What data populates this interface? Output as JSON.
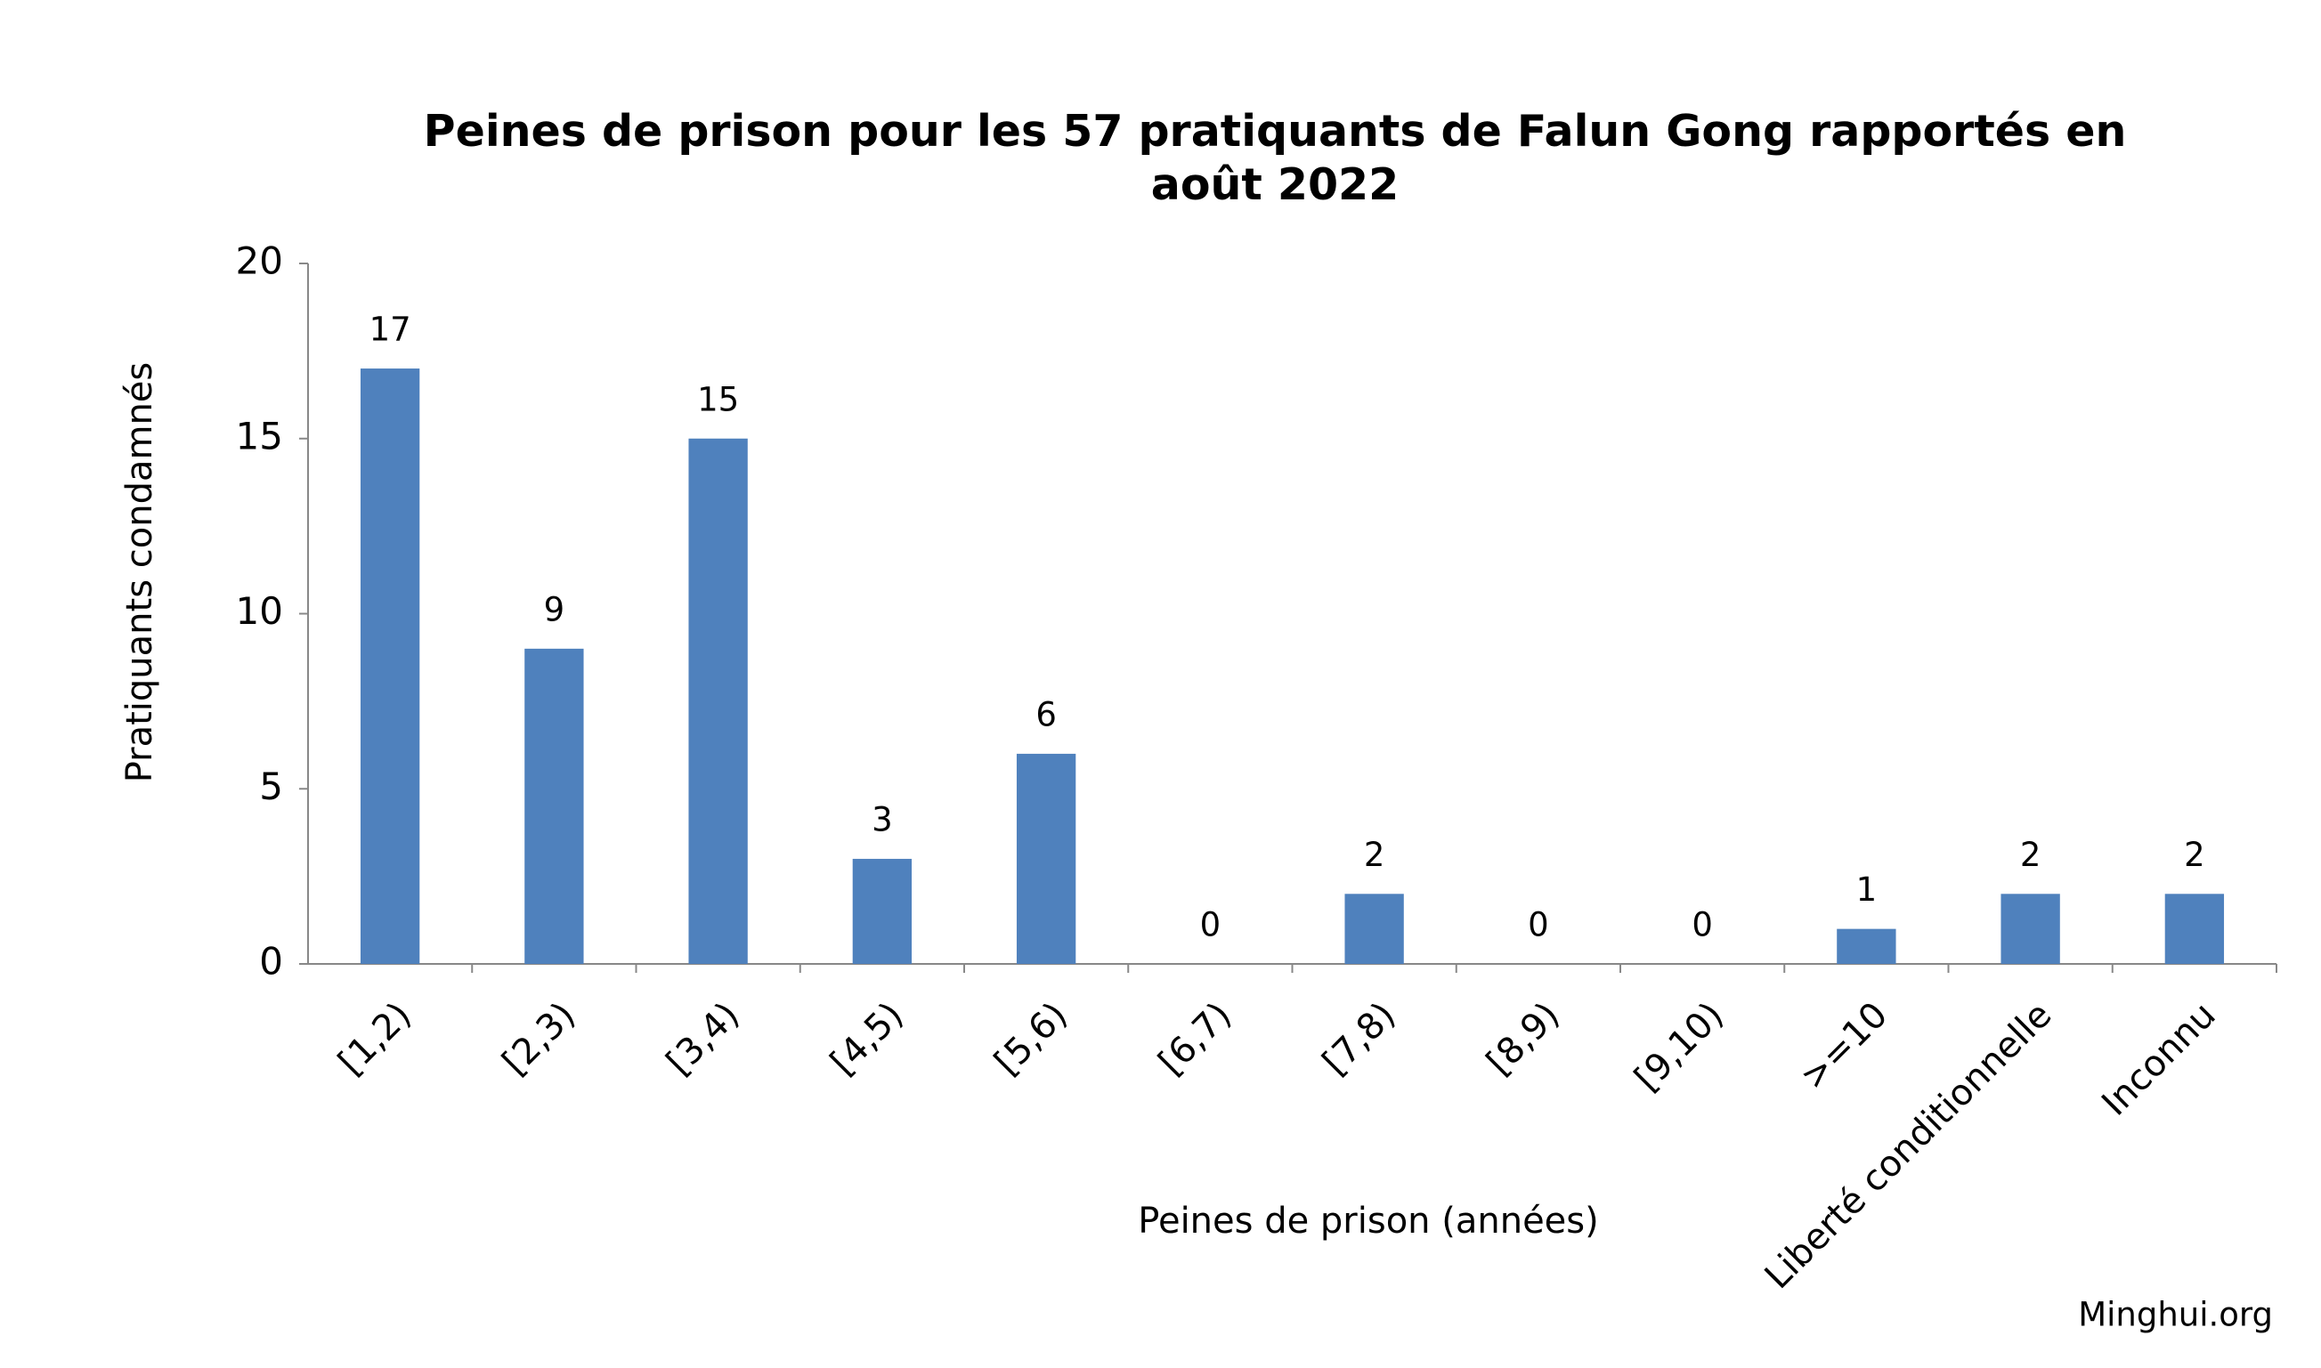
{
  "chart_data": {
    "type": "bar",
    "title": "Peines de prison pour les 57 pratiquants de Falun Gong rapportés en août 2022",
    "x_label": "Peines de prison (années)",
    "y_label": "Pratiquants condamnés",
    "source": "Minghui.org",
    "categories": [
      "[1,2)",
      "[2,3)",
      "[3,4)",
      "[4,5)",
      "[5,6)",
      "[6,7)",
      "[7,8)",
      "[8,9)",
      "[9,10)",
      ">=10",
      "Liberté conditionnelle",
      "Inconnu"
    ],
    "values": [
      17,
      9,
      15,
      3,
      6,
      0,
      2,
      0,
      0,
      1,
      2,
      2
    ],
    "color": "#4f81bd",
    "ylim": [
      0,
      20
    ],
    "yticks": [
      0,
      5,
      10,
      15,
      20
    ],
    "grid": false
  }
}
